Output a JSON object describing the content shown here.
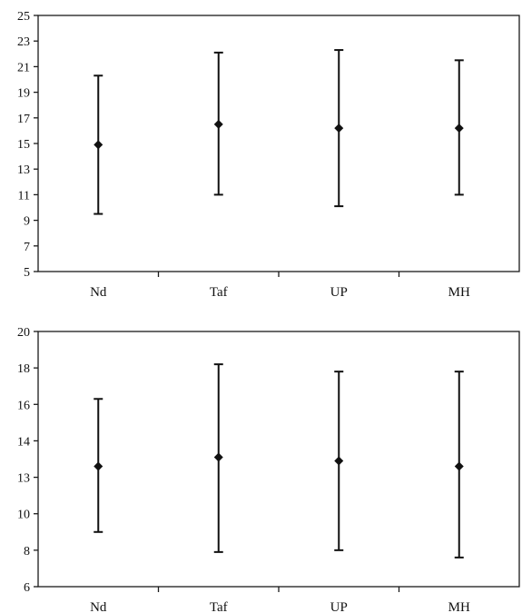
{
  "chart_data": [
    {
      "type": "scatter",
      "categories": [
        "Nd",
        "Taf",
        "UP",
        "MH"
      ],
      "ylim": [
        5,
        25
      ],
      "y_ticks": [
        "5",
        "7",
        "9",
        "11",
        "13",
        "15",
        "17",
        "19",
        "21",
        "23",
        "25"
      ],
      "series": [
        {
          "mean": [
            14.9,
            16.5,
            16.2,
            16.2
          ],
          "low": [
            9.5,
            11.0,
            10.1,
            11.0
          ],
          "high": [
            20.3,
            22.1,
            22.3,
            21.5
          ]
        }
      ],
      "grid": false,
      "legend": "none"
    },
    {
      "type": "scatter",
      "categories": [
        "Nd",
        "Taf",
        "UP",
        "MH"
      ],
      "ylim": [
        6,
        20
      ],
      "y_ticks": [
        "6",
        "8",
        "10",
        "13",
        "14",
        "16",
        "18",
        "20"
      ],
      "series": [
        {
          "mean": [
            12.6,
            13.1,
            12.9,
            12.6
          ],
          "low": [
            9.0,
            7.9,
            8.0,
            7.6
          ],
          "high": [
            16.3,
            18.2,
            17.8,
            17.8
          ]
        }
      ],
      "grid": false,
      "legend": "none"
    }
  ]
}
